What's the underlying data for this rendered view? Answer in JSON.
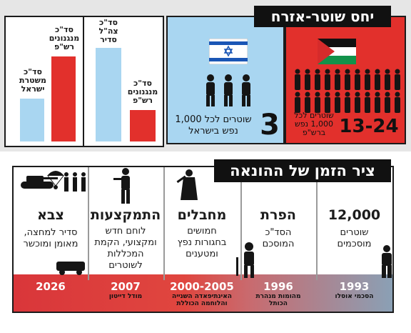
{
  "header_top": "יחס שוטר-אזרח",
  "header_timeline": "ציר הזמן של ההונאה",
  "chart_data": {
    "type": "bar",
    "charts": [
      {
        "categories": [
          "סד\"כ משטרת ישראל",
          "סד\"כ מנגנונים רש\"פ"
        ],
        "values": [
          0.36,
          0.71
        ],
        "colors": [
          "#a9d6f1",
          "#e2302c"
        ]
      },
      {
        "categories": [
          "סד\"כ צה\"ל סדיר",
          "סד\"כ מנגנונים רש\"פ"
        ],
        "values": [
          0.78,
          0.26
        ],
        "colors": [
          "#a9d6f1",
          "#e2302c"
        ]
      }
    ]
  },
  "israel": {
    "number": "3",
    "text": "שוטרים לכל 1,000\nנפש בישראל"
  },
  "palestine": {
    "number": "13-24",
    "text": "שוטרים לכל\n1,000 נפש\nברש\"פ"
  },
  "timeline": [
    {
      "year": "1993",
      "event": "הסכמי אוסלו",
      "title": "12,000",
      "body": "שוטרים\nמוסכמים"
    },
    {
      "year": "1996",
      "event": "מהומות מנהרת\nהכותל",
      "title": "הפרת",
      "body": "הסד\"כ\nהמוסכם"
    },
    {
      "year": "2000-2005",
      "event": "האינתיפאדה השנייה\nוהלוחמה הכוללת",
      "title": "מחבלים",
      "body": "חמושים\nבחגורות נפץ\nומטענים"
    },
    {
      "year": "2007",
      "event": "מודל דייטון",
      "title": "התמקצעות",
      "body": "לוחם חדש\nומקצועי, הקמת\nהמכללות\nלשוטרים"
    },
    {
      "year": "2026",
      "event": "",
      "title": "צבא",
      "body": "סדיר למחצה,\nמאומן ומוכשר"
    }
  ]
}
